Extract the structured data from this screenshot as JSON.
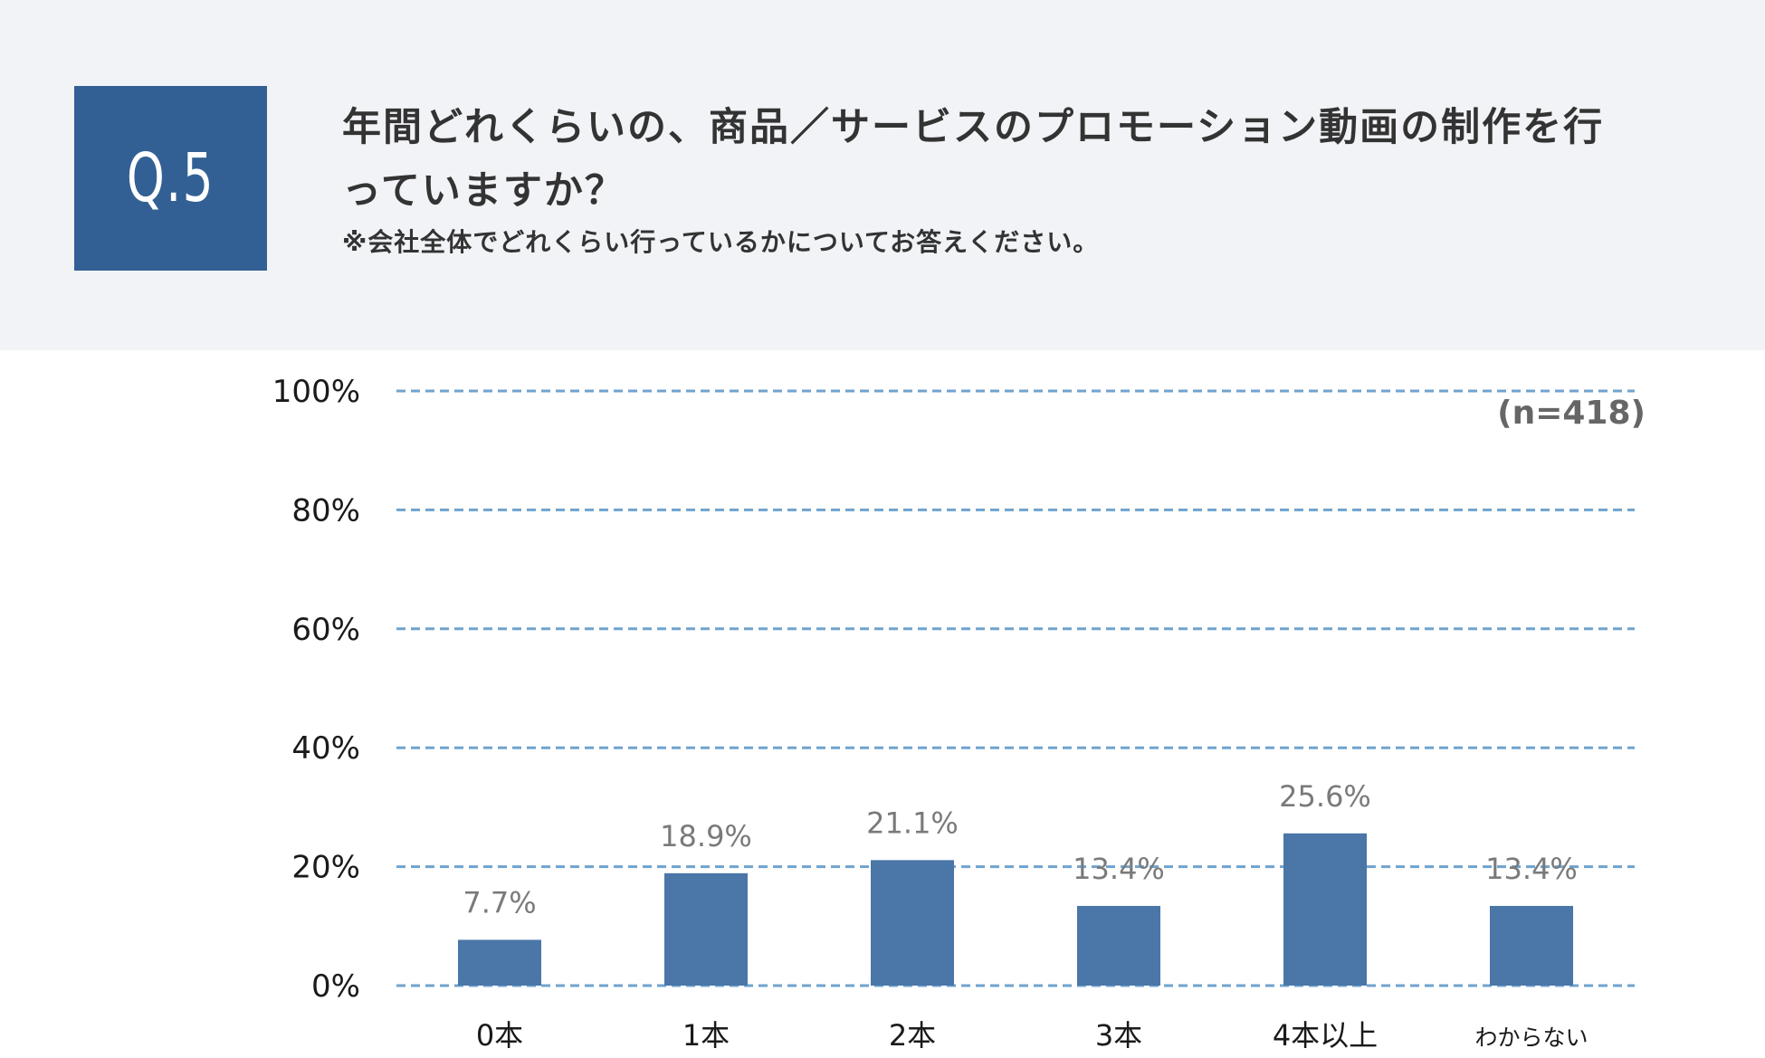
{
  "question": {
    "number_label": "Q.5",
    "title": "年間どれくらいの、商品／サービスのプロモーション動画の制作を行っていますか？",
    "note": "※会社全体でどれくらい行っているかについてお答えください。"
  },
  "colors": {
    "header_bg": "#f1f3f6",
    "question_box": "#336094",
    "bar": "#4a76a8",
    "gridline": "#6fa3cf",
    "data_label": "#7a7a7a"
  },
  "chart_data": {
    "type": "bar",
    "categories": [
      "0本",
      "1本",
      "2本",
      "3本",
      "4本以上",
      "わからない"
    ],
    "values": [
      7.7,
      18.9,
      21.1,
      13.4,
      25.6,
      13.4
    ],
    "value_labels": [
      "7.7%",
      "18.9%",
      "21.1%",
      "13.4%",
      "25.6%",
      "13.4%"
    ],
    "y_ticks": [
      0,
      20,
      40,
      60,
      80,
      100
    ],
    "y_tick_labels": [
      "0%",
      "20%",
      "40%",
      "60%",
      "80%",
      "100%"
    ],
    "ylim": [
      0,
      100
    ],
    "grid": "dashed horizontal",
    "sample_size_label": "(n=418)"
  }
}
